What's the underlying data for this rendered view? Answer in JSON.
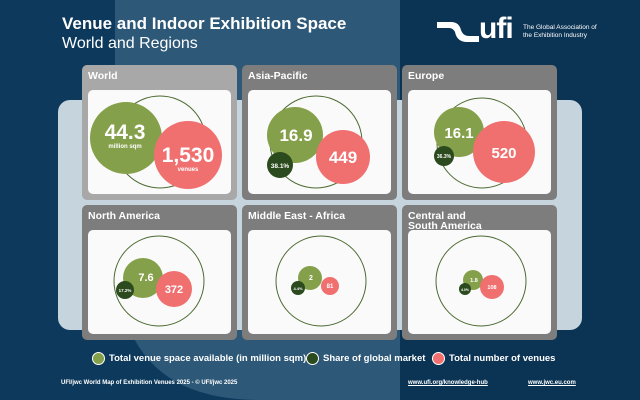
{
  "header": {
    "title": "Venue and Indoor Exhibition Space",
    "subtitle": "World and Regions"
  },
  "logo": {
    "text": "ufi",
    "tagline": "The Global Association of the Exhibition Industry"
  },
  "colors": {
    "space": "#85a04a",
    "share": "#2b4a1d",
    "venues": "#f07070",
    "background": "#0d3a5c"
  },
  "chart_data": {
    "type": "bubble",
    "regions": [
      {
        "name": "World",
        "space": "44.3",
        "space_unit": "million sqm",
        "venues": "1,530",
        "venues_unit": "venues",
        "share": ""
      },
      {
        "name": "Asia-Pacific",
        "space": "16.9",
        "share": "38.1%",
        "venues": "449"
      },
      {
        "name": "Europe",
        "space": "16.1",
        "share": "36.3%",
        "venues": "520"
      },
      {
        "name": "North America",
        "space": "7.6",
        "share": "17.2%",
        "venues": "372"
      },
      {
        "name": "Middle East - Africa",
        "space": "2",
        "share": "4.4%",
        "venues": "81"
      },
      {
        "name": "Central and South America",
        "space": "1.8",
        "share": "4.0%",
        "venues": "108"
      }
    ]
  },
  "legend": [
    {
      "label": "Total venue space available (in million sqm)"
    },
    {
      "label": "Share of global market"
    },
    {
      "label": "Total number of venues"
    }
  ],
  "footer": {
    "credit": "UFI/jwc World Map of Exhibition Venues 2025 - © UFI/jwc 2025",
    "link1": "www.ufi.org/knowledge-hub",
    "link2": "www.jwc.eu.com"
  }
}
